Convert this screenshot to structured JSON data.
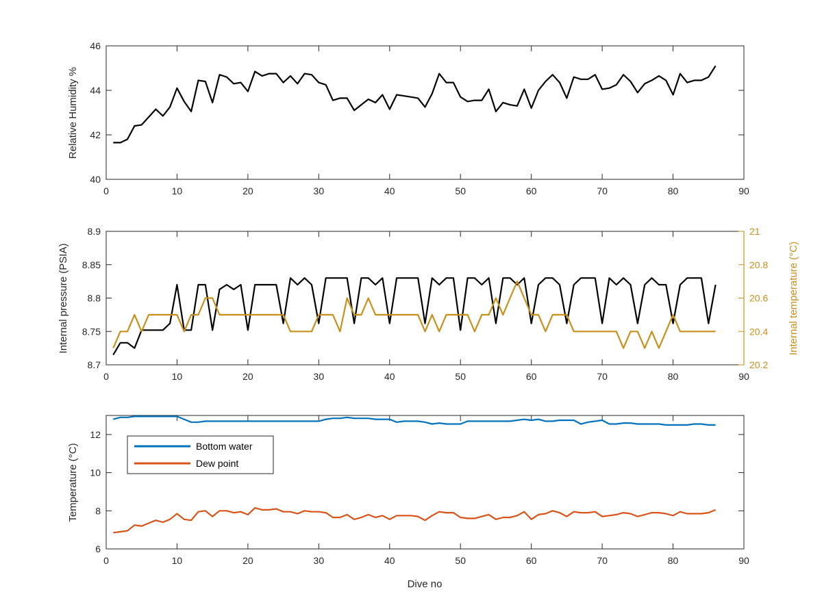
{
  "chart_data": [
    {
      "type": "line",
      "xlabel": "",
      "ylabel": "Relative Humidity %",
      "xlim": [
        0,
        90
      ],
      "ylim": [
        40,
        46
      ],
      "xticks": [
        0,
        10,
        20,
        30,
        40,
        50,
        60,
        70,
        80,
        90
      ],
      "yticks": [
        40,
        42,
        44,
        46
      ],
      "grid": false,
      "series": [
        {
          "color": "#000000",
          "x": [
            1,
            2,
            3,
            4,
            5,
            6,
            7,
            8,
            9,
            10,
            11,
            12,
            13,
            14,
            15,
            16,
            17,
            18,
            19,
            20,
            21,
            22,
            23,
            24,
            25,
            26,
            27,
            28,
            29,
            30,
            31,
            32,
            33,
            34,
            35,
            36,
            37,
            38,
            39,
            40,
            41,
            42,
            43,
            44,
            45,
            46,
            47,
            48,
            49,
            50,
            51,
            52,
            53,
            54,
            55,
            56,
            57,
            58,
            59,
            60,
            61,
            62,
            63,
            64,
            65,
            66,
            67,
            68,
            69,
            70,
            71,
            72,
            73,
            74,
            75,
            76,
            77,
            78,
            79,
            80,
            81,
            82,
            83,
            84,
            85,
            86
          ],
          "values": [
            41.65,
            41.65,
            41.8,
            42.4,
            42.45,
            42.8,
            43.15,
            42.85,
            43.25,
            44.1,
            43.5,
            43.05,
            44.45,
            44.4,
            43.45,
            44.7,
            44.6,
            44.3,
            44.35,
            43.95,
            44.85,
            44.65,
            44.75,
            44.75,
            44.35,
            44.65,
            44.3,
            44.75,
            44.7,
            44.35,
            44.25,
            43.55,
            43.65,
            43.65,
            43.1,
            43.35,
            43.6,
            43.45,
            43.8,
            43.15,
            43.8,
            43.75,
            43.7,
            43.65,
            43.25,
            43.85,
            44.75,
            44.35,
            44.35,
            43.7,
            43.5,
            43.55,
            43.55,
            44.05,
            43.05,
            43.45,
            43.35,
            43.3,
            44.05,
            43.2,
            44.0,
            44.4,
            44.7,
            44.35,
            43.65,
            44.6,
            44.5,
            44.5,
            44.7,
            44.05,
            44.1,
            44.25,
            44.7,
            44.4,
            43.9,
            44.3,
            44.45,
            44.65,
            44.45,
            43.8,
            44.75,
            44.35,
            44.45,
            44.45,
            44.6,
            45.1
          ]
        }
      ]
    },
    {
      "type": "line",
      "xlabel": "",
      "ylabel": "Internal pressure (PSIA)",
      "y2label": "Internal temperature (°C)",
      "xlim": [
        0,
        90
      ],
      "ylim": [
        8.7,
        8.9
      ],
      "y2lim": [
        20.2,
        21
      ],
      "xticks": [
        0,
        10,
        20,
        30,
        40,
        50,
        60,
        70,
        80,
        90
      ],
      "yticks": [
        "8.7",
        "8.75",
        "8.8",
        "8.85",
        "8.9"
      ],
      "y2ticks": [
        "20.2",
        "20.4",
        "20.6",
        "20.8",
        "21"
      ],
      "grid": false,
      "series": [
        {
          "axis": "left",
          "color": "#000000",
          "x": [
            1,
            2,
            3,
            4,
            5,
            6,
            7,
            8,
            9,
            10,
            11,
            12,
            13,
            14,
            15,
            16,
            17,
            18,
            19,
            20,
            21,
            22,
            23,
            24,
            25,
            26,
            27,
            28,
            29,
            30,
            31,
            32,
            33,
            34,
            35,
            36,
            37,
            38,
            39,
            40,
            41,
            42,
            43,
            44,
            45,
            46,
            47,
            48,
            49,
            50,
            51,
            52,
            53,
            54,
            55,
            56,
            57,
            58,
            59,
            60,
            61,
            62,
            63,
            64,
            65,
            66,
            67,
            68,
            69,
            70,
            71,
            72,
            73,
            74,
            75,
            76,
            77,
            78,
            79,
            80,
            81,
            82,
            83,
            84,
            85,
            86
          ],
          "values": [
            8.715,
            8.733,
            8.733,
            8.725,
            8.752,
            8.752,
            8.752,
            8.752,
            8.762,
            8.82,
            8.752,
            8.752,
            8.82,
            8.82,
            8.752,
            8.813,
            8.82,
            8.813,
            8.82,
            8.752,
            8.82,
            8.82,
            8.82,
            8.82,
            8.762,
            8.83,
            8.82,
            8.83,
            8.82,
            8.762,
            8.83,
            8.83,
            8.83,
            8.83,
            8.762,
            8.83,
            8.83,
            8.82,
            8.83,
            8.762,
            8.83,
            8.83,
            8.83,
            8.83,
            8.762,
            8.83,
            8.82,
            8.83,
            8.83,
            8.752,
            8.83,
            8.83,
            8.82,
            8.83,
            8.762,
            8.83,
            8.83,
            8.82,
            8.83,
            8.762,
            8.82,
            8.83,
            8.83,
            8.82,
            8.762,
            8.82,
            8.83,
            8.83,
            8.83,
            8.762,
            8.83,
            8.82,
            8.83,
            8.82,
            8.762,
            8.82,
            8.83,
            8.82,
            8.82,
            8.762,
            8.82,
            8.83,
            8.83,
            8.83,
            8.762,
            8.82
          ]
        },
        {
          "axis": "right",
          "color": "#C8901A",
          "x": [
            1,
            2,
            3,
            4,
            5,
            6,
            7,
            8,
            9,
            10,
            11,
            12,
            13,
            14,
            15,
            16,
            17,
            18,
            19,
            20,
            21,
            22,
            23,
            24,
            25,
            26,
            27,
            28,
            29,
            30,
            31,
            32,
            33,
            34,
            35,
            36,
            37,
            38,
            39,
            40,
            41,
            42,
            43,
            44,
            45,
            46,
            47,
            48,
            49,
            50,
            51,
            52,
            53,
            54,
            55,
            56,
            57,
            58,
            59,
            60,
            61,
            62,
            63,
            64,
            65,
            66,
            67,
            68,
            69,
            70,
            71,
            72,
            73,
            74,
            75,
            76,
            77,
            78,
            79,
            80,
            81,
            82,
            83,
            84,
            85,
            86
          ],
          "values": [
            20.3,
            20.4,
            20.4,
            20.5,
            20.4,
            20.5,
            20.5,
            20.5,
            20.5,
            20.5,
            20.4,
            20.5,
            20.5,
            20.6,
            20.6,
            20.5,
            20.5,
            20.5,
            20.5,
            20.5,
            20.5,
            20.5,
            20.5,
            20.5,
            20.5,
            20.4,
            20.4,
            20.4,
            20.4,
            20.5,
            20.5,
            20.5,
            20.4,
            20.6,
            20.5,
            20.5,
            20.6,
            20.5,
            20.5,
            20.5,
            20.5,
            20.5,
            20.5,
            20.5,
            20.4,
            20.5,
            20.4,
            20.5,
            20.5,
            20.5,
            20.5,
            20.4,
            20.5,
            20.5,
            20.6,
            20.5,
            20.6,
            20.7,
            20.6,
            20.5,
            20.5,
            20.4,
            20.5,
            20.5,
            20.5,
            20.4,
            20.4,
            20.4,
            20.4,
            20.4,
            20.4,
            20.4,
            20.3,
            20.4,
            20.4,
            20.3,
            20.4,
            20.3,
            20.4,
            20.5,
            20.4,
            20.4,
            20.4,
            20.4,
            20.4,
            20.4
          ]
        }
      ]
    },
    {
      "type": "line",
      "xlabel": "Dive no",
      "ylabel": "Temperature (°C)",
      "xlim": [
        0,
        90
      ],
      "ylim": [
        6,
        13
      ],
      "xticks": [
        0,
        10,
        20,
        30,
        40,
        50,
        60,
        70,
        80,
        90
      ],
      "yticks": [
        6,
        8,
        10,
        12
      ],
      "grid": false,
      "legend": "top-left",
      "series": [
        {
          "name": "Bottom water",
          "color": "#0072BD",
          "x": [
            1,
            2,
            3,
            4,
            5,
            6,
            7,
            8,
            9,
            10,
            11,
            12,
            13,
            14,
            15,
            16,
            17,
            18,
            19,
            20,
            21,
            22,
            23,
            24,
            25,
            26,
            27,
            28,
            29,
            30,
            31,
            32,
            33,
            34,
            35,
            36,
            37,
            38,
            39,
            40,
            41,
            42,
            43,
            44,
            45,
            46,
            47,
            48,
            49,
            50,
            51,
            52,
            53,
            54,
            55,
            56,
            57,
            58,
            59,
            60,
            61,
            62,
            63,
            64,
            65,
            66,
            67,
            68,
            69,
            70,
            71,
            72,
            73,
            74,
            75,
            76,
            77,
            78,
            79,
            80,
            81,
            82,
            83,
            84,
            85,
            86
          ],
          "values": [
            12.8,
            12.9,
            12.9,
            12.95,
            12.95,
            12.95,
            12.95,
            12.95,
            12.95,
            12.95,
            12.8,
            12.65,
            12.65,
            12.7,
            12.7,
            12.7,
            12.7,
            12.7,
            12.7,
            12.7,
            12.7,
            12.7,
            12.7,
            12.7,
            12.7,
            12.7,
            12.7,
            12.7,
            12.7,
            12.7,
            12.8,
            12.85,
            12.85,
            12.9,
            12.85,
            12.85,
            12.85,
            12.8,
            12.8,
            12.8,
            12.65,
            12.7,
            12.7,
            12.7,
            12.65,
            12.55,
            12.6,
            12.55,
            12.55,
            12.55,
            12.7,
            12.7,
            12.7,
            12.7,
            12.7,
            12.7,
            12.7,
            12.75,
            12.8,
            12.75,
            12.8,
            12.7,
            12.7,
            12.75,
            12.75,
            12.75,
            12.55,
            12.65,
            12.7,
            12.75,
            12.55,
            12.55,
            12.6,
            12.6,
            12.55,
            12.55,
            12.55,
            12.55,
            12.5,
            12.5,
            12.5,
            12.5,
            12.55,
            12.55,
            12.5,
            12.5
          ]
        },
        {
          "name": "Dew point",
          "color": "#D95319",
          "x": [
            1,
            2,
            3,
            4,
            5,
            6,
            7,
            8,
            9,
            10,
            11,
            12,
            13,
            14,
            15,
            16,
            17,
            18,
            19,
            20,
            21,
            22,
            23,
            24,
            25,
            26,
            27,
            28,
            29,
            30,
            31,
            32,
            33,
            34,
            35,
            36,
            37,
            38,
            39,
            40,
            41,
            42,
            43,
            44,
            45,
            46,
            47,
            48,
            49,
            50,
            51,
            52,
            53,
            54,
            55,
            56,
            57,
            58,
            59,
            60,
            61,
            62,
            63,
            64,
            65,
            66,
            67,
            68,
            69,
            70,
            71,
            72,
            73,
            74,
            75,
            76,
            77,
            78,
            79,
            80,
            81,
            82,
            83,
            84,
            85,
            86
          ],
          "values": [
            6.85,
            6.9,
            6.95,
            7.25,
            7.2,
            7.35,
            7.5,
            7.4,
            7.55,
            7.85,
            7.55,
            7.5,
            7.95,
            8.0,
            7.7,
            8.0,
            8.0,
            7.9,
            7.95,
            7.8,
            8.15,
            8.05,
            8.05,
            8.1,
            7.95,
            7.95,
            7.85,
            8.0,
            7.95,
            7.95,
            7.9,
            7.65,
            7.65,
            7.8,
            7.55,
            7.65,
            7.8,
            7.65,
            7.75,
            7.55,
            7.75,
            7.75,
            7.75,
            7.7,
            7.5,
            7.75,
            7.95,
            7.9,
            7.9,
            7.65,
            7.6,
            7.6,
            7.7,
            7.8,
            7.55,
            7.65,
            7.65,
            7.75,
            7.95,
            7.55,
            7.8,
            7.85,
            8.0,
            7.9,
            7.7,
            7.95,
            7.9,
            7.9,
            7.95,
            7.7,
            7.75,
            7.8,
            7.9,
            7.85,
            7.7,
            7.8,
            7.9,
            7.9,
            7.85,
            7.75,
            7.95,
            7.85,
            7.85,
            7.85,
            7.9,
            8.05
          ]
        }
      ]
    }
  ]
}
